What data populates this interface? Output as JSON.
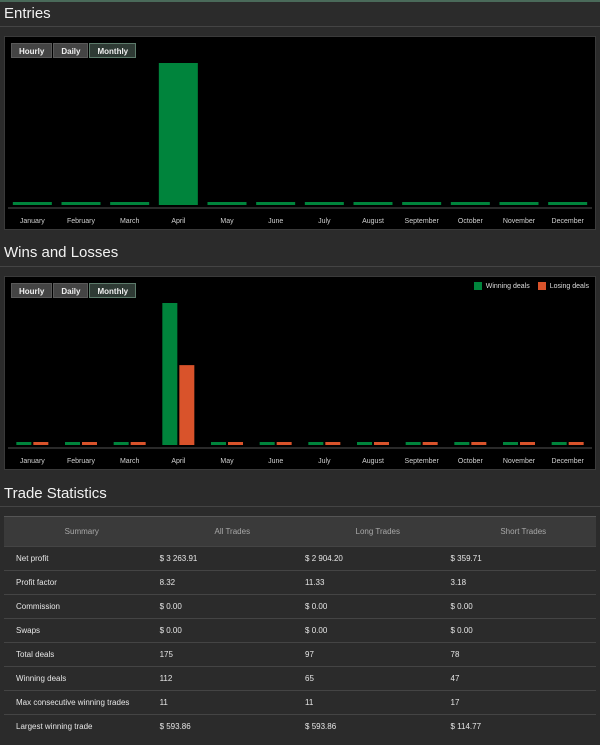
{
  "sections": {
    "entries_title": "Entries",
    "wins_title": "Wins and Losses",
    "stats_title": "Trade Statistics"
  },
  "tabs": [
    "Hourly",
    "Daily",
    "Monthly"
  ],
  "active_tab": "Monthly",
  "legend": {
    "winning": "Winning deals",
    "losing": "Losing deals"
  },
  "colors": {
    "green": "#00843c",
    "orange": "#d9532b"
  },
  "chart_data": [
    {
      "type": "bar",
      "categories": [
        "January",
        "February",
        "March",
        "April",
        "May",
        "June",
        "July",
        "August",
        "September",
        "October",
        "November",
        "December"
      ],
      "values": [
        0,
        0,
        0,
        175,
        0,
        0,
        0,
        0,
        0,
        0,
        0,
        0
      ],
      "ylim": [
        0,
        175
      ]
    },
    {
      "type": "bar",
      "categories": [
        "January",
        "February",
        "March",
        "April",
        "May",
        "June",
        "July",
        "August",
        "September",
        "October",
        "November",
        "December"
      ],
      "series": [
        {
          "name": "Winning deals",
          "values": [
            0,
            0,
            0,
            112,
            0,
            0,
            0,
            0,
            0,
            0,
            0,
            0
          ]
        },
        {
          "name": "Losing deals",
          "values": [
            0,
            0,
            0,
            63,
            0,
            0,
            0,
            0,
            0,
            0,
            0,
            0
          ]
        }
      ],
      "ylim": [
        0,
        112
      ]
    }
  ],
  "table": {
    "headers": [
      "Summary",
      "All Trades",
      "Long Trades",
      "Short Trades"
    ],
    "rows": [
      [
        "Net profit",
        "$ 3 263.91",
        "$ 2 904.20",
        "$ 359.71"
      ],
      [
        "Profit factor",
        "8.32",
        "11.33",
        "3.18"
      ],
      [
        "Commission",
        "$ 0.00",
        "$ 0.00",
        "$ 0.00"
      ],
      [
        "Swaps",
        "$ 0.00",
        "$ 0.00",
        "$ 0.00"
      ],
      [
        "Total deals",
        "175",
        "97",
        "78"
      ],
      [
        "Winning deals",
        "112",
        "65",
        "47"
      ],
      [
        "Max consecutive winning trades",
        "11",
        "11",
        "17"
      ],
      [
        "Largest winning trade",
        "$ 593.86",
        "$ 593.86",
        "$ 114.77"
      ]
    ]
  }
}
